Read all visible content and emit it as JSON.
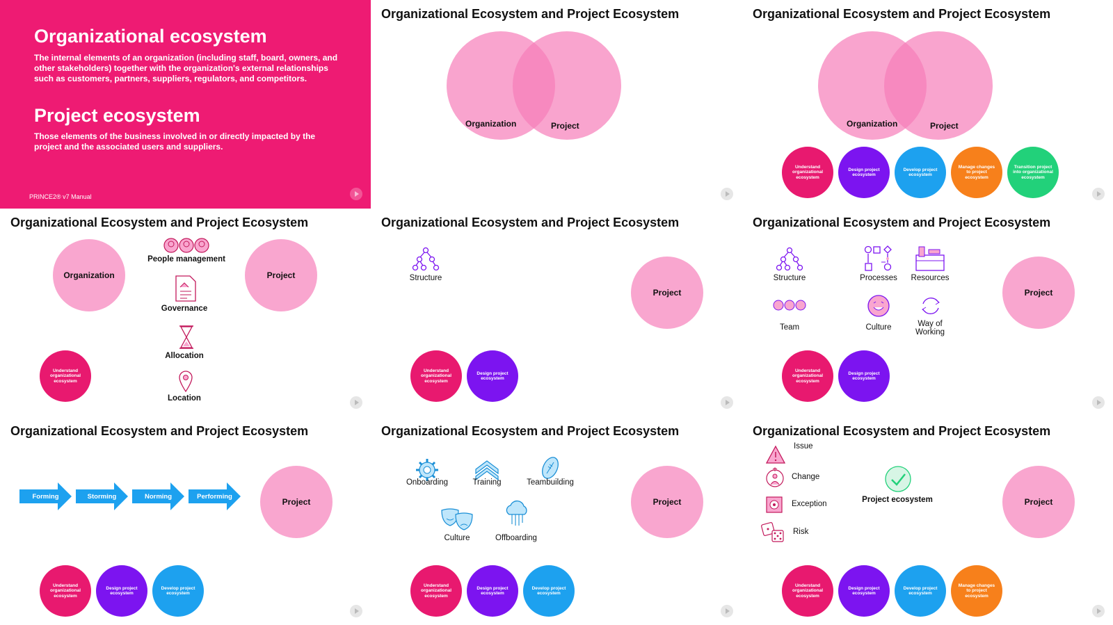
{
  "colors": {
    "pink": "#ee1b73",
    "light_pink": "#f9a6cf",
    "magenta": "#e8196f",
    "purple": "#7c14f0",
    "blue": "#1da1ef",
    "orange": "#f7801b",
    "green": "#22d17a"
  },
  "slide_title": "Organizational Ecosystem and Project Ecosystem",
  "slide1": {
    "heading1": "Organizational ecosystem",
    "text1": "The internal elements of an organization (including staff, board, owners, and other stakeholders) together with the organization's external relationships such as customers, partners, suppliers, regulators, and competitors.",
    "heading2": "Project ecosystem",
    "text2": "Those elements of the business involved in or directly impacted by the project and the associated users and suppliers.",
    "footer": "PRINCE2® v7 Manual"
  },
  "labels": {
    "organization": "Organization",
    "project": "Project"
  },
  "steps": {
    "understand": "Understand organizational ecosystem",
    "design": "Design project ecosystem",
    "develop": "Develop project ecosystem",
    "manage": "Manage changes to project ecosystem",
    "transition": "Transition project into organizational ecosystem"
  },
  "slide4": {
    "people": "People management",
    "governance": "Governance",
    "allocation": "Allocation",
    "location": "Location"
  },
  "slide5": {
    "structure": "Structure"
  },
  "slide6": {
    "structure": "Structure",
    "processes": "Processes",
    "resources": "Resources",
    "team": "Team",
    "culture": "Culture",
    "way": "Way of Working"
  },
  "slide7": {
    "forming": "Forming",
    "storming": "Storming",
    "norming": "Norming",
    "performing": "Performing"
  },
  "slide8": {
    "onboarding": "Onboarding",
    "training": "Training",
    "teambuilding": "Teambuilding",
    "culture": "Culture",
    "offboarding": "Offboarding"
  },
  "slide9": {
    "issue": "Issue",
    "change": "Change",
    "exception": "Exception",
    "risk": "Risk",
    "project_ecosystem": "Project ecosystem"
  },
  "icons": [
    "org-chart-icon",
    "process-icon",
    "tools-icon",
    "team-icon",
    "smile-icon",
    "cycle-icon",
    "people-icon",
    "document-icon",
    "hourglass-icon",
    "location-pin-icon",
    "gear-icon",
    "chevrons-icon",
    "football-icon",
    "masks-icon",
    "cloud-icon",
    "warning-icon",
    "person-change-icon",
    "exception-icon",
    "dice-icon",
    "checkmark-icon",
    "play-icon"
  ]
}
